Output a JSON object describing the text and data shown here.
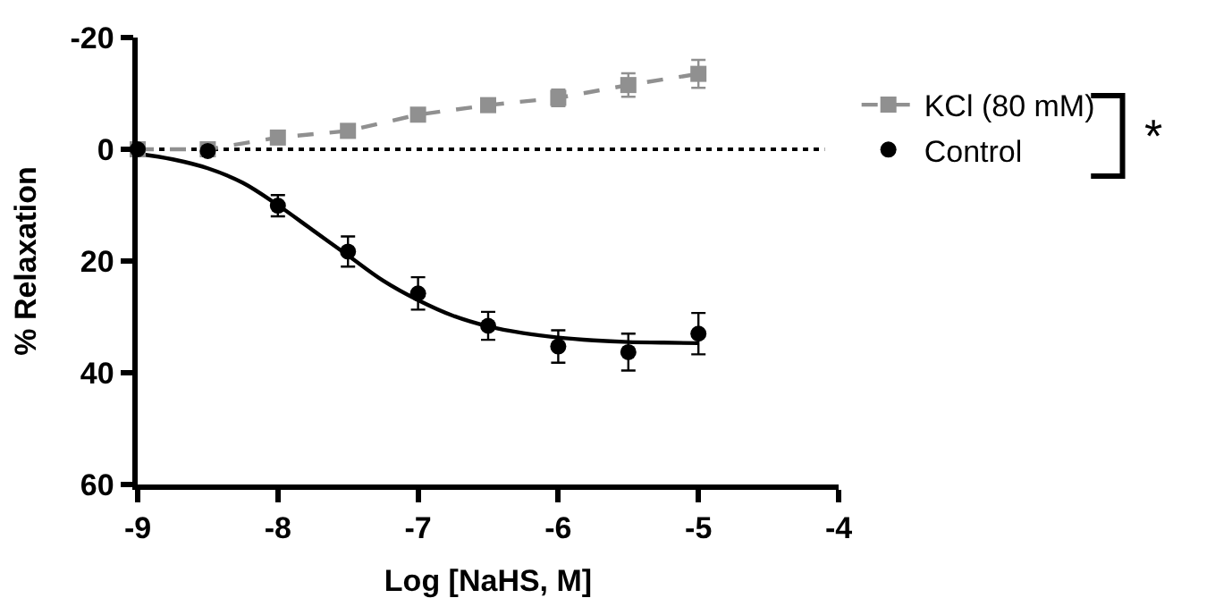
{
  "chart_data": {
    "type": "scatter",
    "xlabel": "Log [NaHS, M]",
    "ylabel": "% Relaxation",
    "x": [
      -9,
      -8.5,
      -8,
      -7.5,
      -7,
      -6.5,
      -6,
      -5.5,
      -5
    ],
    "series": [
      {
        "name": "KCl (80 mM)",
        "color": "#909090",
        "type": "line",
        "marker": "square",
        "line_style": "dashed",
        "values": [
          0,
          0,
          -2.1,
          -3.3,
          -6.2,
          -7.9,
          -9.2,
          -11.5,
          -13.5
        ],
        "errors": [
          null,
          null,
          null,
          null,
          null,
          null,
          1.5,
          2.1,
          2.5
        ]
      },
      {
        "name": "Control",
        "color": "#000000",
        "marker": "circle",
        "values": [
          0,
          0.3,
          10.1,
          18.3,
          25.8,
          31.6,
          35.3,
          36.3,
          33.0
        ],
        "errors": [
          null,
          null,
          1.9,
          2.7,
          2.9,
          2.5,
          2.9,
          3.3,
          3.7
        ]
      },
      {
        "color": "#000000",
        "type": "line",
        "marker": "none",
        "line_style": "solid",
        "x": [
          -9,
          -8.75,
          -8.5,
          -8.25,
          -8,
          -7.75,
          -7.5,
          -7.25,
          -7,
          -6.75,
          -6.5,
          -6.25,
          -6,
          -5.75,
          -5.5,
          -5.25,
          -5
        ],
        "values": [
          0.8,
          1.8,
          3.4,
          6,
          10,
          14.5,
          19,
          23.5,
          27,
          29.8,
          31.7,
          32.9,
          33.7,
          34.2,
          34.5,
          34.6,
          34.7
        ]
      }
    ],
    "xlim": [
      -9,
      -4
    ],
    "xticks": [
      -9,
      -8,
      -7,
      -6,
      -5,
      -4
    ],
    "ylim": [
      60,
      -20
    ],
    "yticks": [
      -20,
      0,
      20,
      40,
      60
    ],
    "ref_lines": [
      {
        "axis": "y",
        "value": 0,
        "line_style": "dotted",
        "color": "#000000"
      }
    ],
    "annotations": [
      "*"
    ],
    "grid": false,
    "legend": "top right"
  }
}
